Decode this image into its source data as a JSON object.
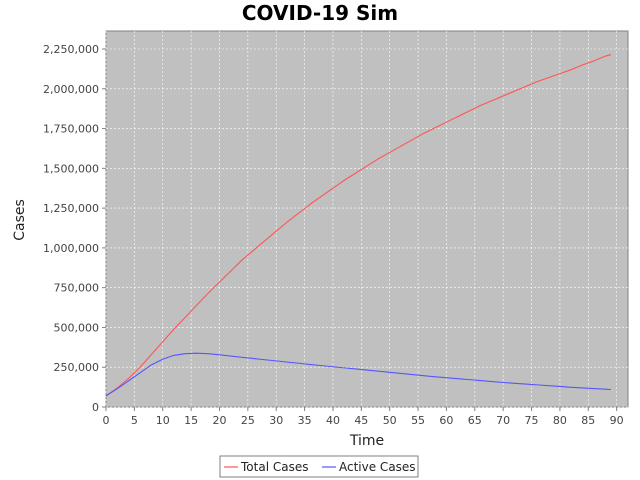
{
  "chart_data": {
    "type": "line",
    "title": "COVID-19 Sim",
    "xlabel": "Time",
    "ylabel": "Cases",
    "xlim": [
      0,
      92
    ],
    "ylim": [
      0,
      2250000
    ],
    "xticks": [
      0,
      5,
      10,
      15,
      20,
      25,
      30,
      35,
      40,
      45,
      50,
      55,
      60,
      65,
      70,
      75,
      80,
      85,
      90
    ],
    "yticks": [
      0,
      250000,
      500000,
      750000,
      1000000,
      1250000,
      1500000,
      1750000,
      2000000,
      2250000
    ],
    "ytick_labels": [
      "0",
      "250,000",
      "500,000",
      "750,000",
      "1,000,000",
      "1,250,000",
      "1,500,000",
      "1,750,000",
      "2,000,000",
      "2,250,000"
    ],
    "grid": true,
    "background": "#c0c0c0",
    "legend_position": "bottom",
    "series": [
      {
        "name": "Total Cases",
        "color": "#ff5555",
        "x": [
          0,
          2,
          4,
          6,
          8,
          10,
          12,
          14,
          16,
          18,
          20,
          22,
          24,
          26,
          28,
          30,
          32,
          34,
          36,
          38,
          40,
          42,
          44,
          46,
          48,
          50,
          52,
          54,
          56,
          58,
          60,
          62,
          64,
          66,
          68,
          70,
          72,
          74,
          76,
          78,
          80,
          82,
          84,
          86,
          88,
          89
        ],
        "values": [
          70000,
          120000,
          180000,
          250000,
          330000,
          410000,
          490000,
          565000,
          640000,
          715000,
          785000,
          855000,
          925000,
          985000,
          1045000,
          1105000,
          1165000,
          1220000,
          1275000,
          1325000,
          1375000,
          1425000,
          1470000,
          1515000,
          1560000,
          1600000,
          1640000,
          1680000,
          1720000,
          1755000,
          1790000,
          1825000,
          1860000,
          1895000,
          1925000,
          1955000,
          1985000,
          2015000,
          2045000,
          2070000,
          2095000,
          2120000,
          2150000,
          2175000,
          2205000,
          2215000
        ]
      },
      {
        "name": "Active Cases",
        "color": "#5555ff",
        "x": [
          0,
          2,
          4,
          6,
          8,
          10,
          12,
          14,
          16,
          18,
          20,
          22,
          24,
          26,
          28,
          30,
          32,
          34,
          36,
          38,
          40,
          42,
          44,
          46,
          48,
          50,
          52,
          54,
          56,
          58,
          60,
          62,
          64,
          66,
          68,
          70,
          72,
          74,
          76,
          78,
          80,
          82,
          84,
          86,
          88,
          89
        ],
        "values": [
          70000,
          115000,
          165000,
          215000,
          265000,
          300000,
          325000,
          335000,
          338000,
          335000,
          328000,
          320000,
          312000,
          305000,
          297000,
          290000,
          282000,
          275000,
          267000,
          260000,
          253000,
          246000,
          239000,
          232000,
          225000,
          218000,
          211000,
          204000,
          197000,
          190000,
          184000,
          178000,
          172000,
          166000,
          160000,
          154000,
          149000,
          144000,
          139000,
          134000,
          129000,
          124000,
          120000,
          116000,
          112000,
          110000
        ]
      }
    ]
  }
}
